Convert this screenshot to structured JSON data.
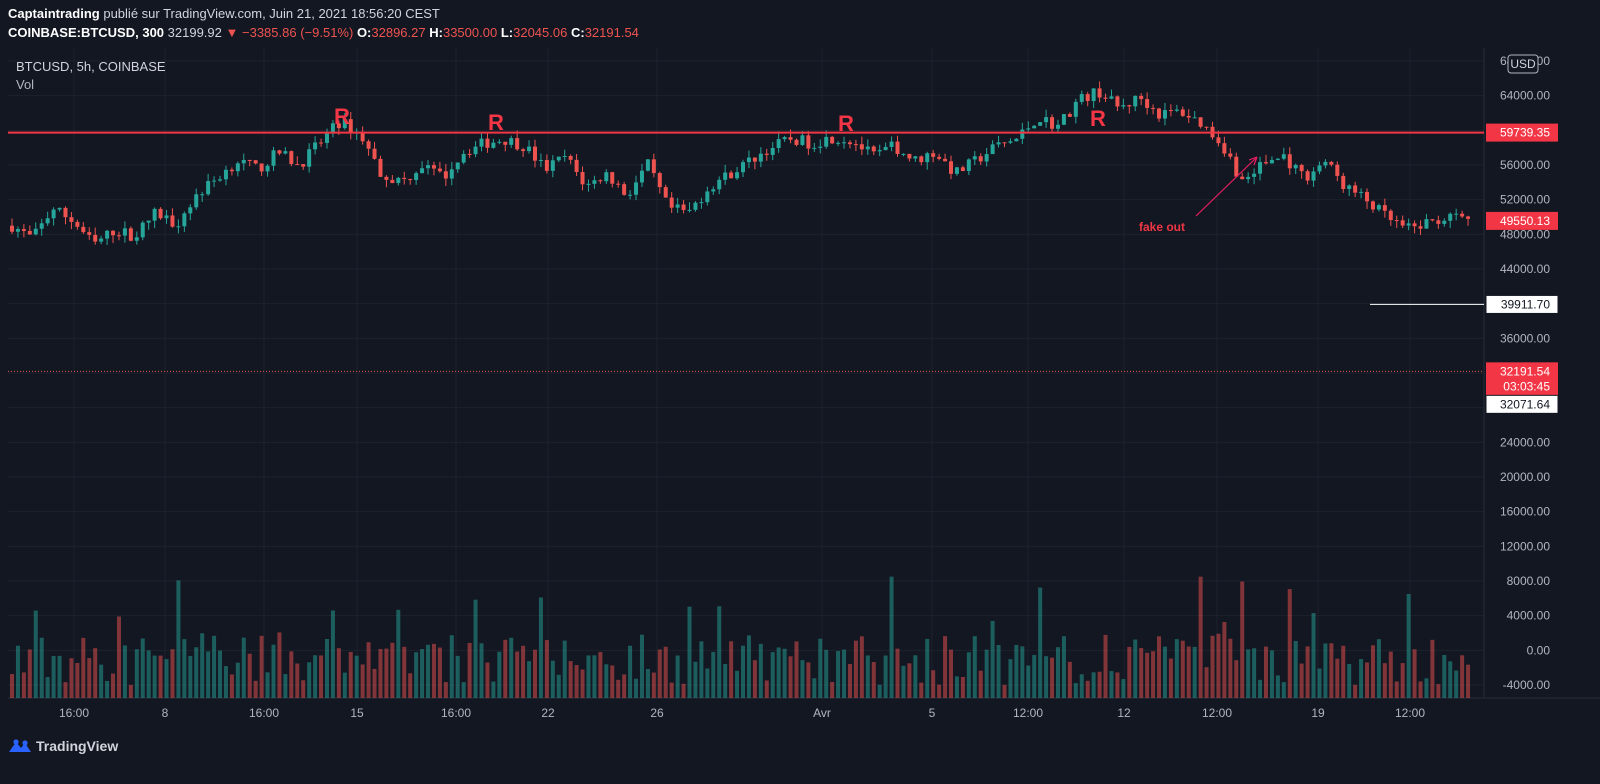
{
  "header": {
    "author": "Captaintrading",
    "published_text": " publié sur TradingView.com, Juin 21, 2021 18:56:20 CEST",
    "symbol_full": "COINBASE:BTCUSD, 300",
    "last_price": "32199.92",
    "change": "−3385.86 (−9.51%)",
    "o_label": "O:",
    "o_value": "32896.27",
    "h_label": "H:",
    "h_value": "33500.00",
    "l_label": "L:",
    "l_value": "32045.06",
    "c_label": "C:",
    "c_value": "32191.54"
  },
  "footer": {
    "brand": "TradingView",
    "logo_icon": "tradingview-logo-icon"
  },
  "chart_data": {
    "type": "candlestick",
    "legend_symbol": "BTCUSD, 5h, COINBASE",
    "legend_volume": "Vol",
    "currency": "USD",
    "y_ticks": [
      "68000.00",
      "64000.00",
      "60000.00",
      "56000.00",
      "52000.00",
      "48000.00",
      "44000.00",
      "40000.00",
      "36000.00",
      "32000.00",
      "28000.00",
      "24000.00",
      "20000.00",
      "16000.00",
      "12000.00",
      "8000.00",
      "4000.00",
      "0.00",
      "-4000.00"
    ],
    "y_range": [
      -5500,
      69500
    ],
    "x_ticks": [
      "16:00",
      "8",
      "16:00",
      "15",
      "16:00",
      "22",
      "26",
      "Avr",
      "5",
      "12:00",
      "12",
      "12:00",
      "19",
      "12:00"
    ],
    "resistance_level": 59739.35,
    "current_price": 49550.13,
    "horizontal_line": 39911.7,
    "last_close": 32191.54,
    "countdown": "03:03:45",
    "low_marker": 32071.64,
    "annotations": [
      {
        "text": "R"
      },
      {
        "text": "R"
      },
      {
        "text": "R"
      },
      {
        "text": "R"
      },
      {
        "text": "fake out"
      }
    ],
    "price_path": [
      49000,
      47500,
      51000,
      49500,
      46800,
      48500,
      47800,
      50500,
      49200,
      52500,
      54500,
      56500,
      55500,
      57500,
      56000,
      58500,
      61000,
      59500,
      55000,
      54000,
      56000,
      54500,
      57500,
      58500,
      59000,
      58200,
      55500,
      57000,
      53500,
      55000,
      52500,
      56000,
      51000,
      50500,
      53500,
      55000,
      56500,
      58000,
      59000,
      58500,
      59200,
      58800,
      57000,
      58200,
      56500,
      57500,
      55000,
      56500,
      58200,
      59000,
      61500,
      60500,
      63500,
      64500,
      62500,
      63800,
      61800,
      62200,
      60800,
      58500,
      54000,
      56200,
      57000,
      54500,
      56500,
      53500,
      52000,
      50000,
      48500,
      49300,
      50000,
      49500
    ]
  }
}
